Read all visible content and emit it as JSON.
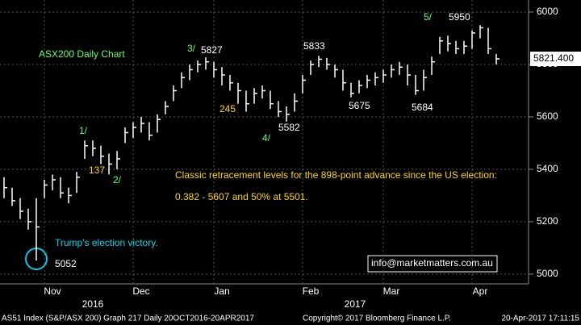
{
  "chart_data": {
    "type": "ohlc",
    "title": "ASX200 Daily Chart",
    "color": "#ffffff",
    "categories": [
      null,
      null,
      null,
      null,
      null,
      null,
      "Nov",
      null,
      null,
      null,
      null,
      null,
      null,
      null,
      null,
      null,
      null,
      "Dec",
      null,
      null,
      null,
      null,
      null,
      null,
      null,
      null,
      null,
      "Jan",
      null,
      null,
      null,
      null,
      null,
      null,
      null,
      null,
      null,
      null,
      "Feb",
      null,
      null,
      null,
      null,
      null,
      null,
      null,
      null,
      null,
      "Mar",
      null,
      null,
      null,
      null,
      null,
      null,
      null,
      null,
      null,
      null,
      "Apr",
      null,
      null
    ],
    "high": [
      5370,
      5330,
      5290,
      5250,
      5290,
      5360,
      5380,
      5370,
      5330,
      5390,
      5510,
      5510,
      5490,
      5460,
      5470,
      5560,
      5580,
      5600,
      5580,
      5610,
      5660,
      5720,
      5770,
      5800,
      5815,
      5827,
      5810,
      5790,
      5760,
      5730,
      5700,
      5710,
      5720,
      5700,
      5660,
      5640,
      5690,
      5760,
      5815,
      5833,
      5825,
      5800,
      5780,
      5730,
      5740,
      5760,
      5770,
      5780,
      5800,
      5810,
      5800,
      5760,
      5780,
      5830,
      5905,
      5910,
      5890,
      5890,
      5930,
      5950,
      5940,
      5840
    ],
    "low": [
      5290,
      5260,
      5210,
      5170,
      5052,
      5290,
      5320,
      5290,
      5270,
      5310,
      5440,
      5450,
      5420,
      5380,
      5400,
      5500,
      5520,
      5540,
      5510,
      5540,
      5610,
      5660,
      5710,
      5740,
      5770,
      5780,
      5750,
      5720,
      5700,
      5650,
      5620,
      5650,
      5670,
      5630,
      5600,
      5582,
      5620,
      5690,
      5760,
      5790,
      5780,
      5750,
      5700,
      5675,
      5690,
      5710,
      5720,
      5730,
      5750,
      5760,
      5720,
      5684,
      5700,
      5760,
      5840,
      5850,
      5840,
      5840,
      5860,
      5900,
      5840,
      5800
    ],
    "close": [
      5330,
      5280,
      5240,
      5200,
      5180,
      5340,
      5360,
      5310,
      5300,
      5370,
      5490,
      5480,
      5450,
      5420,
      5440,
      5540,
      5560,
      5575,
      5530,
      5590,
      5640,
      5700,
      5750,
      5780,
      5800,
      5810,
      5780,
      5760,
      5730,
      5700,
      5650,
      5690,
      5700,
      5650,
      5620,
      5610,
      5660,
      5740,
      5800,
      5820,
      5800,
      5780,
      5730,
      5690,
      5720,
      5740,
      5750,
      5760,
      5780,
      5790,
      5760,
      5700,
      5750,
      5810,
      5890,
      5880,
      5860,
      5870,
      5920,
      5940,
      5860,
      5821.4
    ],
    "last": {
      "value": 5821.4,
      "label": "5821.400"
    },
    "ylim": [
      4969,
      6046
    ],
    "yticks": [
      5000,
      5200,
      5400,
      5600,
      5800,
      6000
    ],
    "grid": true,
    "years": [
      "2016",
      "2017"
    ],
    "annotations": [
      "3/",
      "5827",
      "5833",
      "5/",
      "5950",
      "1/",
      "137",
      "2/",
      "245",
      "4/",
      "5582",
      "5675",
      "5684",
      "5052",
      "Trump's election victory.",
      "Classic retracement levels for the 898-point advance since the US election:",
      "0.382 - 5607 and 50% at 5501.",
      "info@marketmatters.com.au"
    ],
    "footer": [
      "AS51 Index (S&P/ASX 200) Graph 217  Daily 20OCT2016-20APR2017",
      "Copyright© 2017 Bloomberg Finance L.P.",
      "20-Apr-2017 17:11:15"
    ]
  }
}
